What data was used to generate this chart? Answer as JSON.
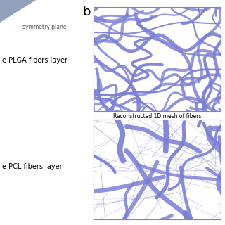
{
  "title_b": "b",
  "label_symmetry": "symmetry plane",
  "label_plga": "e PLGA fibers layer",
  "label_pcl": "e PCL fibers layer",
  "label_caption": "Reconstructed 1D mesh of fibers",
  "fiber_color_thick": "#7B7FD4",
  "fiber_color_thin": "#AAAAD8",
  "bg_color": "#FFFFFF",
  "triangle_color": "#8090B0",
  "figsize": [
    3.2,
    3.2
  ],
  "dpi": 100
}
